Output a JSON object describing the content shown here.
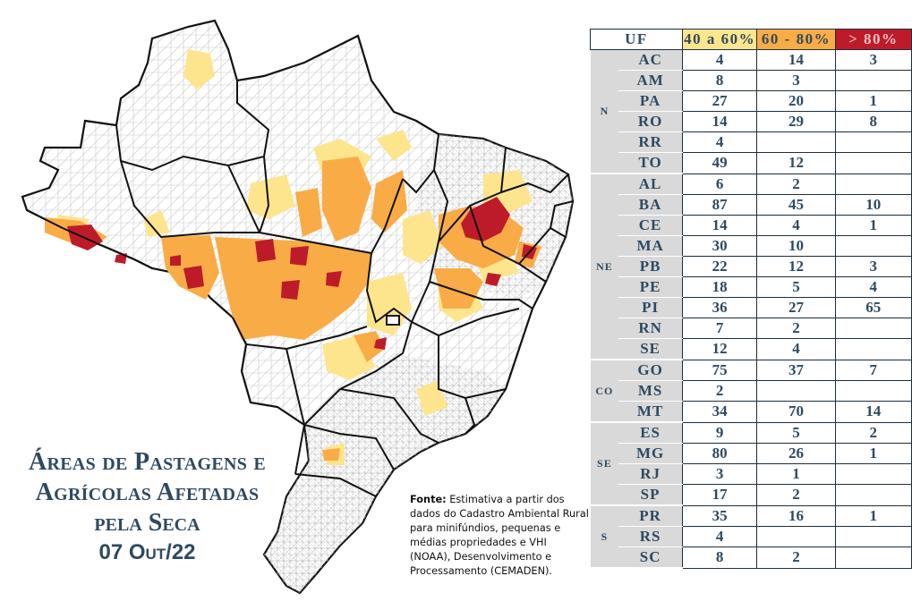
{
  "title": {
    "line1": "Áreas de Pastagens e",
    "line2": "Agrícolas Afetadas",
    "line3": "pela Seca",
    "date": "07 Out/22"
  },
  "source": {
    "label": "Fonte:",
    "text": "Estimativa a partir dos dados do Cadastro Ambiental Rural para minifúndios, pequenas e médias propriedades e VHI (NOAA), Desenvolvimento e Processamento (CEMADEN)."
  },
  "colors": {
    "class_40_60": "#fde58e",
    "class_60_80": "#f9ac46",
    "class_gt_80": "#bd1b2a",
    "state_border": "#111111",
    "municipality_border": "#b9b9b9",
    "title_text": "#2e4a60"
  },
  "table": {
    "headers": [
      "UF",
      "40 a 60%",
      "60 - 80%",
      "> 80%"
    ],
    "regions": [
      {
        "name": "N",
        "rows": [
          {
            "uf": "AC",
            "c1": "4",
            "c2": "14",
            "c3": "3"
          },
          {
            "uf": "AM",
            "c1": "8",
            "c2": "3",
            "c3": ""
          },
          {
            "uf": "PA",
            "c1": "27",
            "c2": "20",
            "c3": "1"
          },
          {
            "uf": "RO",
            "c1": "14",
            "c2": "29",
            "c3": "8"
          },
          {
            "uf": "RR",
            "c1": "4",
            "c2": "",
            "c3": ""
          },
          {
            "uf": "TO",
            "c1": "49",
            "c2": "12",
            "c3": ""
          }
        ]
      },
      {
        "name": "NE",
        "rows": [
          {
            "uf": "AL",
            "c1": "6",
            "c2": "2",
            "c3": ""
          },
          {
            "uf": "BA",
            "c1": "87",
            "c2": "45",
            "c3": "10"
          },
          {
            "uf": "CE",
            "c1": "14",
            "c2": "4",
            "c3": "1"
          },
          {
            "uf": "MA",
            "c1": "30",
            "c2": "10",
            "c3": ""
          },
          {
            "uf": "PB",
            "c1": "22",
            "c2": "12",
            "c3": "3"
          },
          {
            "uf": "PE",
            "c1": "18",
            "c2": "5",
            "c3": "4"
          },
          {
            "uf": "PI",
            "c1": "36",
            "c2": "27",
            "c3": "65"
          },
          {
            "uf": "RN",
            "c1": "7",
            "c2": "2",
            "c3": ""
          },
          {
            "uf": "SE",
            "c1": "12",
            "c2": "4",
            "c3": ""
          }
        ]
      },
      {
        "name": "CO",
        "rows": [
          {
            "uf": "GO",
            "c1": "75",
            "c2": "37",
            "c3": "7"
          },
          {
            "uf": "MS",
            "c1": "2",
            "c2": "",
            "c3": ""
          },
          {
            "uf": "MT",
            "c1": "34",
            "c2": "70",
            "c3": "14"
          }
        ]
      },
      {
        "name": "SE",
        "rows": [
          {
            "uf": "ES",
            "c1": "9",
            "c2": "5",
            "c3": "2"
          },
          {
            "uf": "MG",
            "c1": "80",
            "c2": "26",
            "c3": "1"
          },
          {
            "uf": "RJ",
            "c1": "3",
            "c2": "1",
            "c3": ""
          },
          {
            "uf": "SP",
            "c1": "17",
            "c2": "2",
            "c3": ""
          }
        ]
      },
      {
        "name": "S",
        "rows": [
          {
            "uf": "PR",
            "c1": "35",
            "c2": "16",
            "c3": "1"
          },
          {
            "uf": "RS",
            "c1": "4",
            "c2": "",
            "c3": ""
          },
          {
            "uf": "SC",
            "c1": "8",
            "c2": "2",
            "c3": ""
          }
        ]
      }
    ]
  }
}
